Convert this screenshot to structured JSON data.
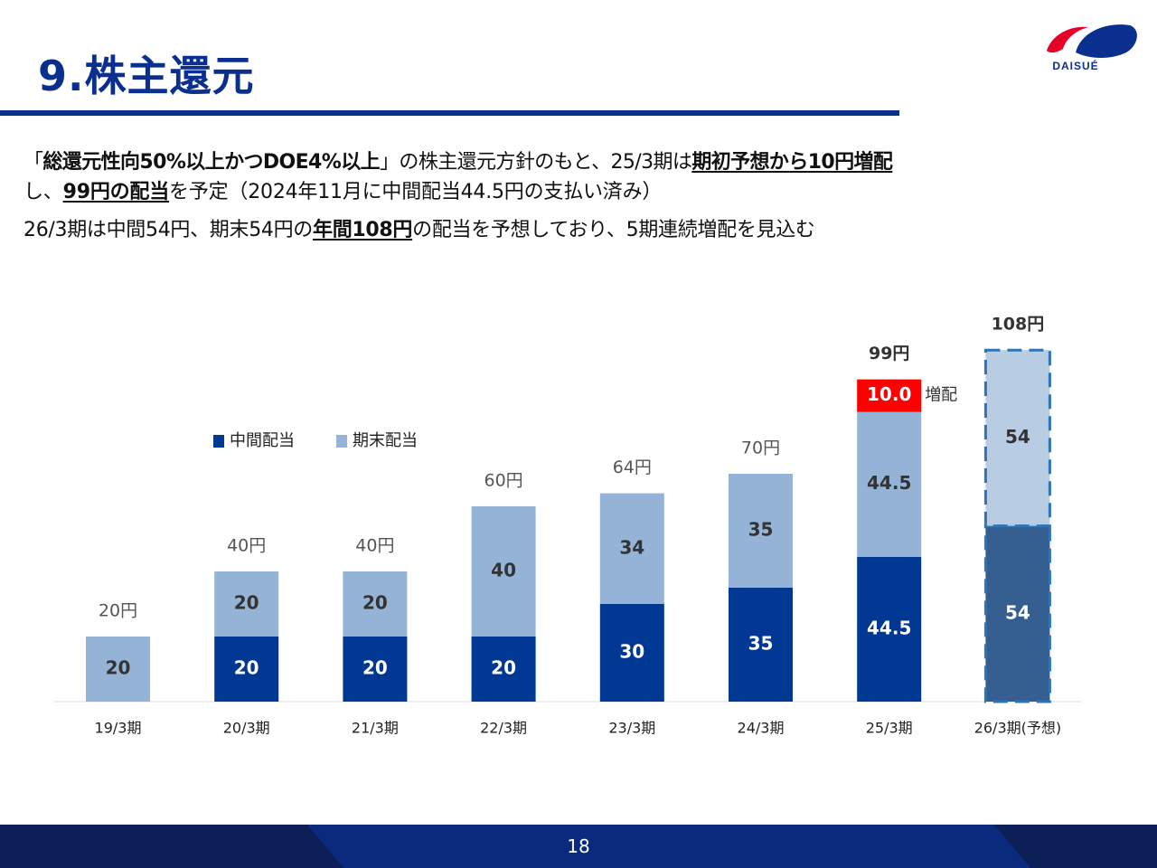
{
  "header": {
    "title": "9.株主還元",
    "logo_text": "DAISUÉ"
  },
  "message": {
    "line1": {
      "q_open": "「",
      "policy": "総還元性向50%以上かつDOE4%以上",
      "q_close": "」",
      "mid": "の株主還元方針のもと、25/3期は",
      "emph": "期初予想から10円増配"
    },
    "line2": {
      "pre": "し、",
      "emph": "99円の配当",
      "post": "を予定（2024年11月に中間配当44.5円の支払い済み）"
    },
    "line3": {
      "pre": "26/3期は中間54円、期末54円の",
      "emph": "年間108円",
      "post": "の配当を予想しており、5期連続増配を見込む"
    }
  },
  "chart_data": {
    "type": "bar",
    "stacked": true,
    "categories": [
      "19/3期",
      "20/3期",
      "21/3期",
      "22/3期",
      "23/3期",
      "24/3期",
      "25/3期",
      "26/3期(予想)"
    ],
    "series": [
      {
        "name": "中間配当",
        "color": "#003894",
        "values": [
          null,
          20,
          20,
          20,
          30,
          35,
          44.5,
          54
        ],
        "labels": [
          "",
          "20",
          "20",
          "20",
          "30",
          "35",
          "44.5",
          "54"
        ]
      },
      {
        "name": "期末配当",
        "color": "#95b3d7",
        "values": [
          20,
          20,
          20,
          40,
          34,
          35,
          44.5,
          54
        ],
        "labels": [
          "20",
          "20",
          "20",
          "40",
          "34",
          "35",
          "44.5",
          "54"
        ]
      },
      {
        "name": "増配",
        "color": "#ff0000",
        "values": [
          null,
          null,
          null,
          null,
          null,
          null,
          10,
          null
        ],
        "labels": [
          "",
          "",
          "",
          "",
          "",
          "",
          "10.0",
          ""
        ]
      }
    ],
    "totals": [
      "20円",
      "40円",
      "40円",
      "60円",
      "64円",
      "70円",
      "99円",
      "108円"
    ],
    "annotation": "増配",
    "forecast_category": "26/3期(予想)",
    "forecast_colors": {
      "interim": "#365f91",
      "year_end": "#b8cce4",
      "border": "#2e75b6"
    },
    "label_colors": {
      "on_light": "#333333",
      "on_dark": "#ffffff"
    },
    "legend_position": "top-left",
    "ylim": [
      0,
      120
    ],
    "grid": false
  },
  "footer": {
    "page": "18"
  }
}
